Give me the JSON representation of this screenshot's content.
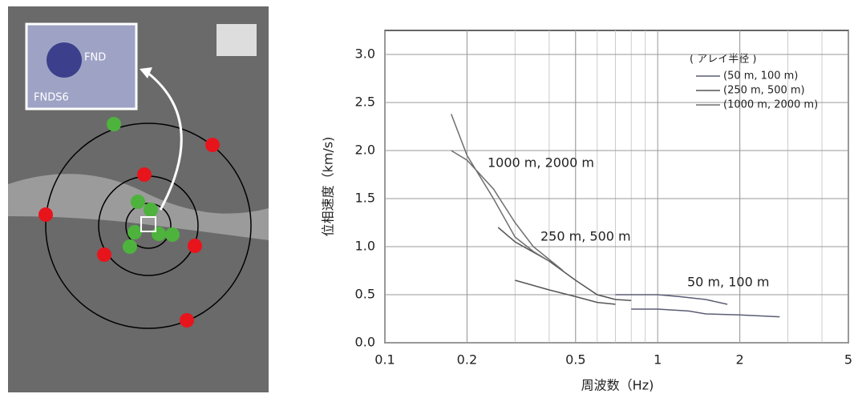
{
  "chart_data": {
    "type": "line",
    "x_label": "周波数（Hz)",
    "y_label": "位相速度（km/s)",
    "xlim": [
      0.1,
      5
    ],
    "xticks": [
      0.1,
      0.2,
      0.5,
      1,
      2,
      5
    ],
    "xscale": "log",
    "ylim": [
      0,
      3.25
    ],
    "yticks": [
      {
        "value": 0,
        "label": "0.0"
      },
      0.5,
      {
        "value": 1,
        "label": "1.0"
      },
      1.5,
      {
        "value": 2,
        "label": "2.0"
      },
      2.5,
      {
        "value": 3,
        "label": "3.0"
      }
    ],
    "grid": true,
    "legend_title": "( アレイ半径 )",
    "annotations": [
      "1000 m, 2000 m",
      "250 m, 500 m",
      "50 m, 100 m"
    ],
    "series": [
      {
        "name": "(50 m, 100 m)",
        "color": "#5a5d75",
        "x": [
          0.7,
          0.85,
          1.0,
          1.2,
          1.5,
          1.8,
          null,
          0.8,
          1.0,
          1.3,
          1.5,
          2.0,
          2.8
        ],
        "values": [
          0.5,
          0.5,
          0.5,
          0.48,
          0.45,
          0.4,
          null,
          0.35,
          0.35,
          0.33,
          0.3,
          0.29,
          0.27
        ]
      },
      {
        "name": "(250 m, 500 m)",
        "color": "#555555",
        "x": [
          0.26,
          0.3,
          0.4,
          0.5,
          0.6,
          0.7,
          0.8,
          null,
          0.3,
          0.4,
          0.5,
          0.6,
          0.7
        ],
        "values": [
          1.2,
          1.05,
          0.85,
          0.65,
          0.5,
          0.45,
          0.44,
          null,
          0.65,
          0.55,
          0.48,
          0.42,
          0.4
        ]
      },
      {
        "name": "(1000 m, 2000 m)",
        "color": "#6e6e6e",
        "x": [
          0.175,
          0.2,
          0.25,
          0.3,
          0.35,
          0.4,
          null,
          0.175,
          0.2,
          0.25,
          0.3,
          0.35,
          0.45
        ],
        "values": [
          2.38,
          1.95,
          1.5,
          1.1,
          0.95,
          0.85,
          null,
          2.0,
          1.9,
          1.6,
          1.25,
          1.0,
          0.75
        ]
      }
    ]
  },
  "map": {
    "labels": [
      "FND",
      "FNDS6"
    ]
  }
}
